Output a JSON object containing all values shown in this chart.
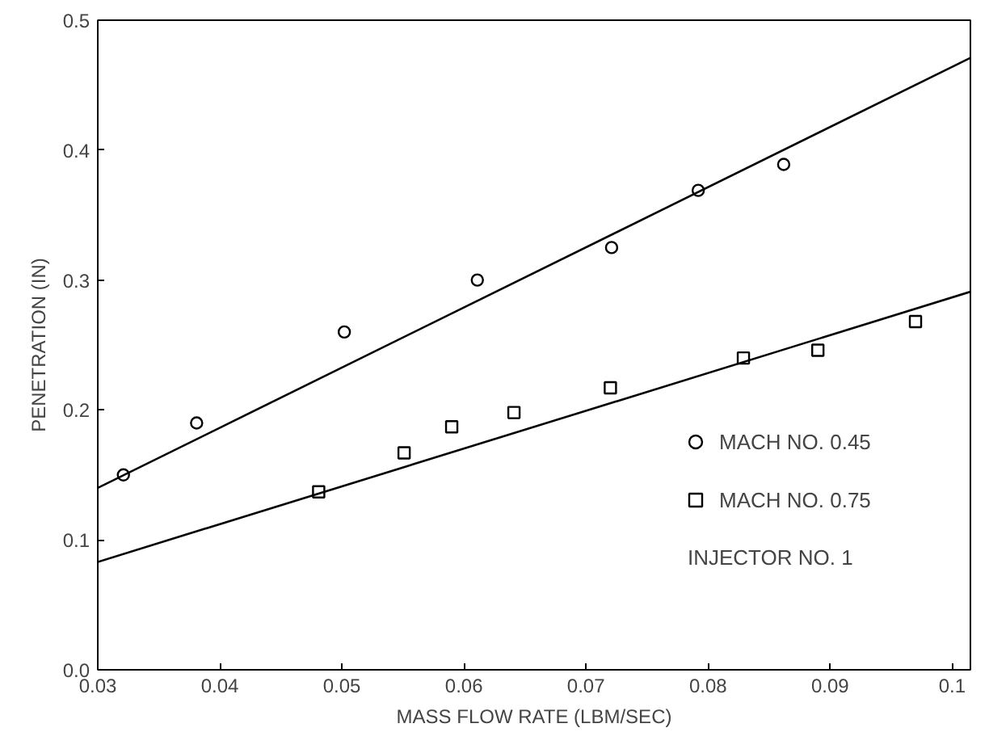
{
  "chart_data": {
    "type": "scatter",
    "xlabel": "MASS FLOW RATE (LBM/SEC)",
    "ylabel": "PENETRATION (IN)",
    "xlim": [
      0.03,
      0.1015
    ],
    "ylim": [
      0.0,
      0.5
    ],
    "xticks": [
      {
        "value": 0.03,
        "label": "0.03"
      },
      {
        "value": 0.04,
        "label": "0.04"
      },
      {
        "value": 0.05,
        "label": "0.05"
      },
      {
        "value": 0.06,
        "label": "0.06"
      },
      {
        "value": 0.07,
        "label": "0.07"
      },
      {
        "value": 0.08,
        "label": "0.08"
      },
      {
        "value": 0.09,
        "label": "0.09"
      },
      {
        "value": 0.1,
        "label": "0.1"
      }
    ],
    "yticks": [
      {
        "value": 0.0,
        "label": "0.0"
      },
      {
        "value": 0.1,
        "label": "0.1"
      },
      {
        "value": 0.2,
        "label": "0.2"
      },
      {
        "value": 0.3,
        "label": "0.3"
      },
      {
        "value": 0.4,
        "label": "0.4"
      },
      {
        "value": 0.5,
        "label": "0.5"
      }
    ],
    "grid": false,
    "legend": "bottom right",
    "series": [
      {
        "name": "MACH NO. 0.45",
        "color": "#000000",
        "marker": "circle",
        "x": [
          0.0321,
          0.0381,
          0.0502,
          0.0611,
          0.0721,
          0.0792,
          0.0862
        ],
        "values": [
          0.15,
          0.19,
          0.26,
          0.3,
          0.325,
          0.369,
          0.389
        ]
      },
      {
        "name": "MACH NO. 0.75",
        "color": "#000000",
        "marker": "square",
        "x": [
          0.0481,
          0.0551,
          0.059,
          0.0641,
          0.072,
          0.0829,
          0.089,
          0.097
        ],
        "values": [
          0.137,
          0.167,
          0.187,
          0.198,
          0.217,
          0.24,
          0.246,
          0.268
        ]
      },
      {
        "type": "line",
        "color": "#000000",
        "x": [
          0.03,
          0.1015
        ],
        "values": [
          0.14,
          0.471
        ]
      },
      {
        "type": "line",
        "color": "#000000",
        "x": [
          0.03,
          0.1015
        ],
        "values": [
          0.083,
          0.291
        ]
      }
    ],
    "annotations": [
      "INJECTOR NO. 1"
    ]
  }
}
